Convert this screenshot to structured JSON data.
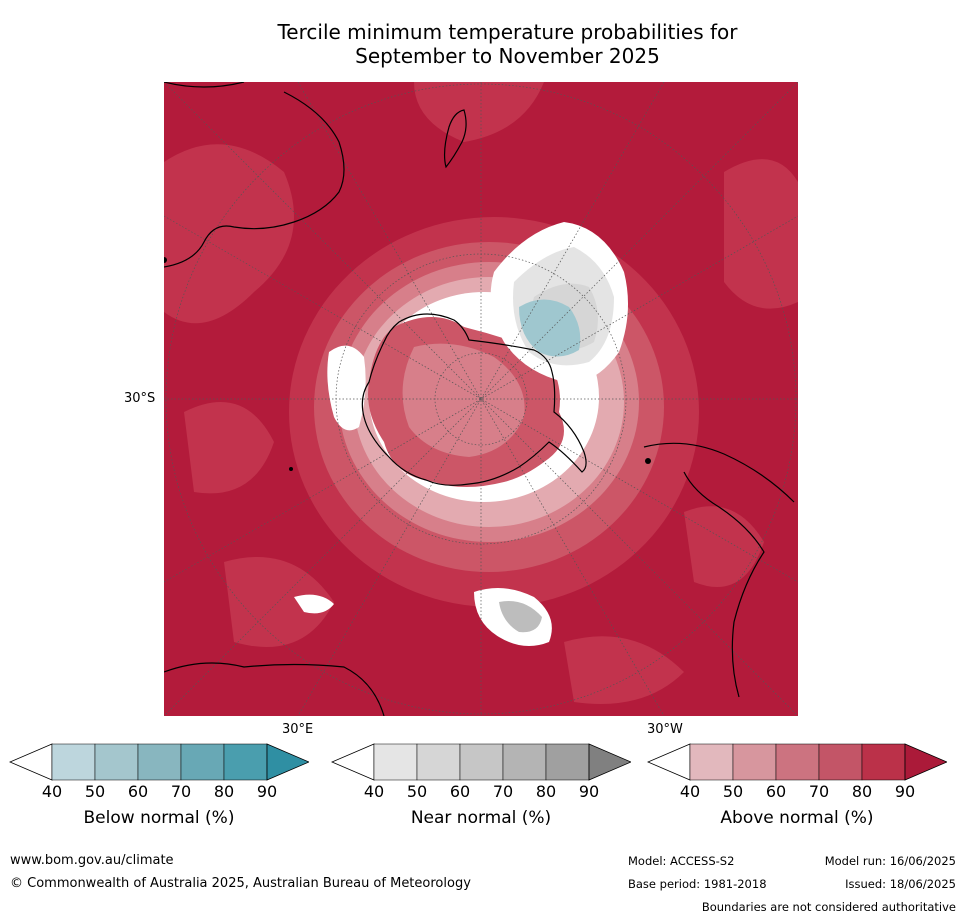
{
  "title": {
    "line1": "Tercile minimum temperature probabilities for",
    "line2": "September to November 2025"
  },
  "map": {
    "lat_label": "30°S",
    "lon_label_east": "30°E",
    "lon_label_west": "30°W",
    "colors": {
      "above_90": "#b31b3b",
      "above_80": "#c2334d",
      "above_70": "#cc5667",
      "above_60": "#d77f8a",
      "above_50": "#e3aab0",
      "near_50": "#e4e4e4",
      "near_60": "#d6d6d6",
      "near_70": "#bdbdbd",
      "below_50": "#9fc7cf",
      "white": "#ffffff"
    }
  },
  "colorbars": [
    {
      "title": "Below normal (%)",
      "ticks": [
        "40",
        "50",
        "60",
        "70",
        "80",
        "90"
      ],
      "colors": [
        "#ffffff",
        "#bdd6dd",
        "#a4c6cd",
        "#88b6bf",
        "#68a8b5",
        "#4a9eae",
        "#2f8fa3"
      ]
    },
    {
      "title": "Near normal (%)",
      "ticks": [
        "40",
        "50",
        "60",
        "70",
        "80",
        "90"
      ],
      "colors": [
        "#ffffff",
        "#e5e5e5",
        "#d6d6d6",
        "#c6c6c6",
        "#b4b4b4",
        "#a0a0a0",
        "#808080"
      ]
    },
    {
      "title": "Above normal (%)",
      "ticks": [
        "40",
        "50",
        "60",
        "70",
        "80",
        "90"
      ],
      "colors": [
        "#ffffff",
        "#e2b8bd",
        "#d7969e",
        "#cc7380",
        "#c35567",
        "#bb3149",
        "#ab1a39"
      ]
    }
  ],
  "footer": {
    "website": "www.bom.gov.au/climate",
    "copyright": "© Commonwealth of Australia 2025, Australian Bureau of Meteorology",
    "model": "Model: ACCESS-S2",
    "base_period": "Base period: 1981-2018",
    "model_run": "Model run: 16/06/2025",
    "issued": "Issued: 18/06/2025",
    "disclaimer": "Boundaries are not considered authoritative"
  }
}
